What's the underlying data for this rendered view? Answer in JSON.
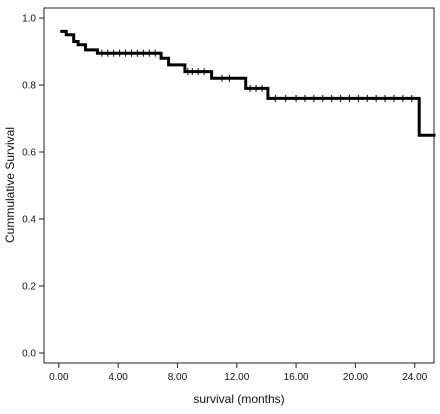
{
  "chart_data": {
    "type": "line",
    "title": "",
    "xlabel": "survival (months)",
    "ylabel": "Cummulative Survival",
    "xlim": [
      -1.0,
      25.3
    ],
    "ylim": [
      -0.03,
      1.03
    ],
    "x_ticks": [
      0,
      4,
      8,
      12,
      16,
      20,
      24
    ],
    "x_tick_labels": [
      "0.00",
      "4.00",
      "8.00",
      "12.00",
      "16.00",
      "20.00",
      "24.00"
    ],
    "y_ticks": [
      0.0,
      0.2,
      0.4,
      0.6,
      0.8,
      1.0
    ],
    "y_tick_labels": [
      "0.0",
      "0.2",
      "0.4",
      "0.6",
      "0.8",
      "1.0"
    ],
    "grid": false,
    "legend": "none",
    "series": [
      {
        "style": "step",
        "color": "#000000",
        "x": [
          0.2,
          0.5,
          1.0,
          1.3,
          1.8,
          2.6,
          6.9,
          7.4,
          8.5,
          10.3,
          12.6,
          14.1,
          24.3,
          25.3
        ],
        "y": [
          0.96,
          0.95,
          0.93,
          0.92,
          0.905,
          0.895,
          0.88,
          0.86,
          0.84,
          0.82,
          0.79,
          0.76,
          0.65,
          0.65
        ],
        "censored_x": [
          2.9,
          3.3,
          3.7,
          4.1,
          4.5,
          4.9,
          5.3,
          5.7,
          6.1,
          6.5,
          8.7,
          9.0,
          9.4,
          9.8,
          11.0,
          11.5,
          12.9,
          13.3,
          13.7,
          14.6,
          15.3,
          16.0,
          16.6,
          17.2,
          17.8,
          18.4,
          19.0,
          19.6,
          20.2,
          20.8,
          21.4,
          22.0,
          22.6,
          23.2,
          23.8
        ]
      }
    ]
  }
}
